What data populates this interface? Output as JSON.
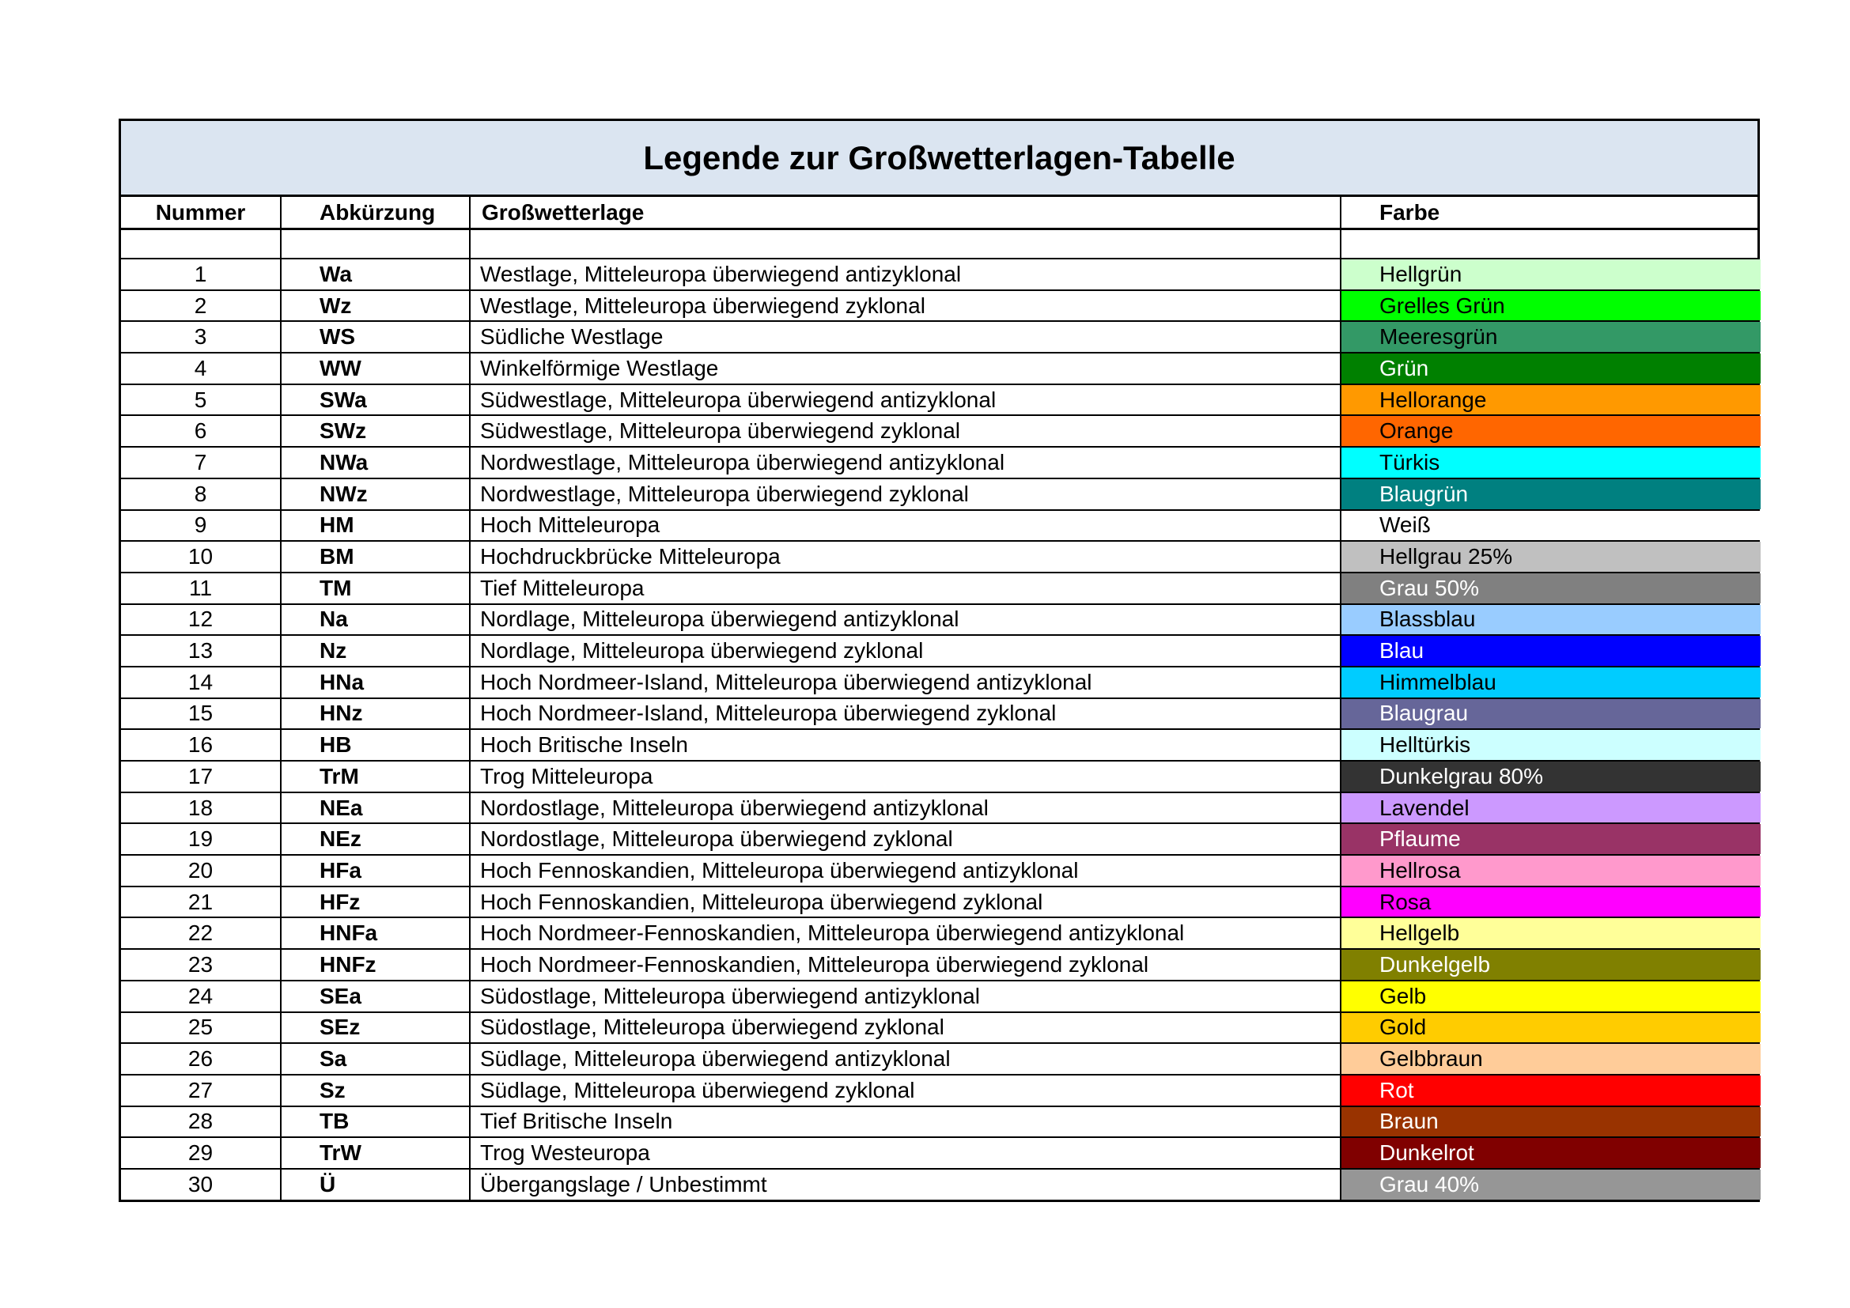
{
  "table": {
    "title": "Legende zur Großwetterlagen-Tabelle",
    "title_background": "#dbe5f1",
    "columns": [
      "Nummer",
      "Abkürzung",
      "Großwetterlage",
      "Farbe"
    ],
    "rows": [
      {
        "nummer": "1",
        "abk": "Wa",
        "gwl": "Westlage, Mitteleuropa überwiegend antizyklonal",
        "farbe": "Hellgrün",
        "hex": "#CCFFCC",
        "fg": "#000000"
      },
      {
        "nummer": "2",
        "abk": "Wz",
        "gwl": "Westlage, Mitteleuropa überwiegend zyklonal",
        "farbe": "Grelles Grün",
        "hex": "#00FF00",
        "fg": "#000000"
      },
      {
        "nummer": "3",
        "abk": "WS",
        "gwl": "Südliche Westlage",
        "farbe": "Meeresgrün",
        "hex": "#339966",
        "fg": "#000000"
      },
      {
        "nummer": "4",
        "abk": "WW",
        "gwl": "Winkelförmige Westlage",
        "farbe": "Grün",
        "hex": "#008000",
        "fg": "#FFFFFF"
      },
      {
        "nummer": "5",
        "abk": "SWa",
        "gwl": "Südwestlage, Mitteleuropa überwiegend antizyklonal",
        "farbe": "Hellorange",
        "hex": "#FF9900",
        "fg": "#000000"
      },
      {
        "nummer": "6",
        "abk": "SWz",
        "gwl": "Südwestlage, Mitteleuropa überwiegend zyklonal",
        "farbe": "Orange",
        "hex": "#FF6600",
        "fg": "#000000"
      },
      {
        "nummer": "7",
        "abk": "NWa",
        "gwl": "Nordwestlage, Mitteleuropa überwiegend antizyklonal",
        "farbe": "Türkis",
        "hex": "#00FFFF",
        "fg": "#000000"
      },
      {
        "nummer": "8",
        "abk": "NWz",
        "gwl": "Nordwestlage, Mitteleuropa überwiegend zyklonal",
        "farbe": "Blaugrün",
        "hex": "#008080",
        "fg": "#FFFFFF"
      },
      {
        "nummer": "9",
        "abk": "HM",
        "gwl": "Hoch Mitteleuropa",
        "farbe": "Weiß",
        "hex": "#FFFFFF",
        "fg": "#000000"
      },
      {
        "nummer": "10",
        "abk": "BM",
        "gwl": "Hochdruckbrücke Mitteleuropa",
        "farbe": "Hellgrau 25%",
        "hex": "#C0C0C0",
        "fg": "#000000"
      },
      {
        "nummer": "11",
        "abk": "TM",
        "gwl": "Tief Mitteleuropa",
        "farbe": "Grau 50%",
        "hex": "#808080",
        "fg": "#FFFFFF"
      },
      {
        "nummer": "12",
        "abk": "Na",
        "gwl": "Nordlage, Mitteleuropa überwiegend antizyklonal",
        "farbe": "Blassblau",
        "hex": "#99CCFF",
        "fg": "#000000"
      },
      {
        "nummer": "13",
        "abk": "Nz",
        "gwl": "Nordlage, Mitteleuropa überwiegend zyklonal",
        "farbe": "Blau",
        "hex": "#0000FF",
        "fg": "#FFFFFF"
      },
      {
        "nummer": "14",
        "abk": "HNa",
        "gwl": "Hoch Nordmeer-Island, Mitteleuropa überwiegend antizyklonal",
        "farbe": "Himmelblau",
        "hex": "#00CCFF",
        "fg": "#000000"
      },
      {
        "nummer": "15",
        "abk": "HNz",
        "gwl": "Hoch Nordmeer-Island, Mitteleuropa überwiegend zyklonal",
        "farbe": "Blaugrau",
        "hex": "#666699",
        "fg": "#FFFFFF"
      },
      {
        "nummer": "16",
        "abk": "HB",
        "gwl": "Hoch Britische Inseln",
        "farbe": "Helltürkis",
        "hex": "#CCFFFF",
        "fg": "#000000"
      },
      {
        "nummer": "17",
        "abk": "TrM",
        "gwl": "Trog Mitteleuropa",
        "farbe": "Dunkelgrau 80%",
        "hex": "#333333",
        "fg": "#FFFFFF"
      },
      {
        "nummer": "18",
        "abk": "NEa",
        "gwl": "Nordostlage, Mitteleuropa überwiegend antizyklonal",
        "farbe": "Lavendel",
        "hex": "#CC99FF",
        "fg": "#000000"
      },
      {
        "nummer": "19",
        "abk": "NEz",
        "gwl": "Nordostlage, Mitteleuropa überwiegend zyklonal",
        "farbe": "Pflaume",
        "hex": "#993366",
        "fg": "#FFFFFF"
      },
      {
        "nummer": "20",
        "abk": "HFa",
        "gwl": "Hoch Fennoskandien, Mitteleuropa überwiegend antizyklonal",
        "farbe": "Hellrosa",
        "hex": "#FF99CC",
        "fg": "#000000"
      },
      {
        "nummer": "21",
        "abk": "HFz",
        "gwl": "Hoch Fennoskandien, Mitteleuropa überwiegend zyklonal",
        "farbe": "Rosa",
        "hex": "#FF00FF",
        "fg": "#000000"
      },
      {
        "nummer": "22",
        "abk": "HNFa",
        "gwl": "Hoch Nordmeer-Fennoskandien, Mitteleuropa überwiegend antizyklonal",
        "farbe": "Hellgelb",
        "hex": "#FFFF99",
        "fg": "#000000"
      },
      {
        "nummer": "23",
        "abk": "HNFz",
        "gwl": "Hoch Nordmeer-Fennoskandien, Mitteleuropa überwiegend zyklonal",
        "farbe": "Dunkelgelb",
        "hex": "#808000",
        "fg": "#FFFFFF"
      },
      {
        "nummer": "24",
        "abk": "SEa",
        "gwl": "Südostlage, Mitteleuropa überwiegend antizyklonal",
        "farbe": "Gelb",
        "hex": "#FFFF00",
        "fg": "#000000"
      },
      {
        "nummer": "25",
        "abk": "SEz",
        "gwl": "Südostlage, Mitteleuropa überwiegend zyklonal",
        "farbe": "Gold",
        "hex": "#FFCC00",
        "fg": "#000000"
      },
      {
        "nummer": "26",
        "abk": "Sa",
        "gwl": "Südlage, Mitteleuropa überwiegend antizyklonal",
        "farbe": "Gelbbraun",
        "hex": "#FFCC99",
        "fg": "#000000"
      },
      {
        "nummer": "27",
        "abk": "Sz",
        "gwl": "Südlage, Mitteleuropa überwiegend zyklonal",
        "farbe": "Rot",
        "hex": "#FF0000",
        "fg": "#FFFFFF"
      },
      {
        "nummer": "28",
        "abk": "TB",
        "gwl": "Tief Britische Inseln",
        "farbe": "Braun",
        "hex": "#993300",
        "fg": "#FFFFFF"
      },
      {
        "nummer": "29",
        "abk": "TrW",
        "gwl": "Trog Westeuropa",
        "farbe": "Dunkelrot",
        "hex": "#800000",
        "fg": "#FFFFFF"
      },
      {
        "nummer": "30",
        "abk": "Ü",
        "gwl": "Übergangslage / Unbestimmt",
        "farbe": "Grau 40%",
        "hex": "#969696",
        "fg": "#FFFFFF"
      }
    ]
  }
}
